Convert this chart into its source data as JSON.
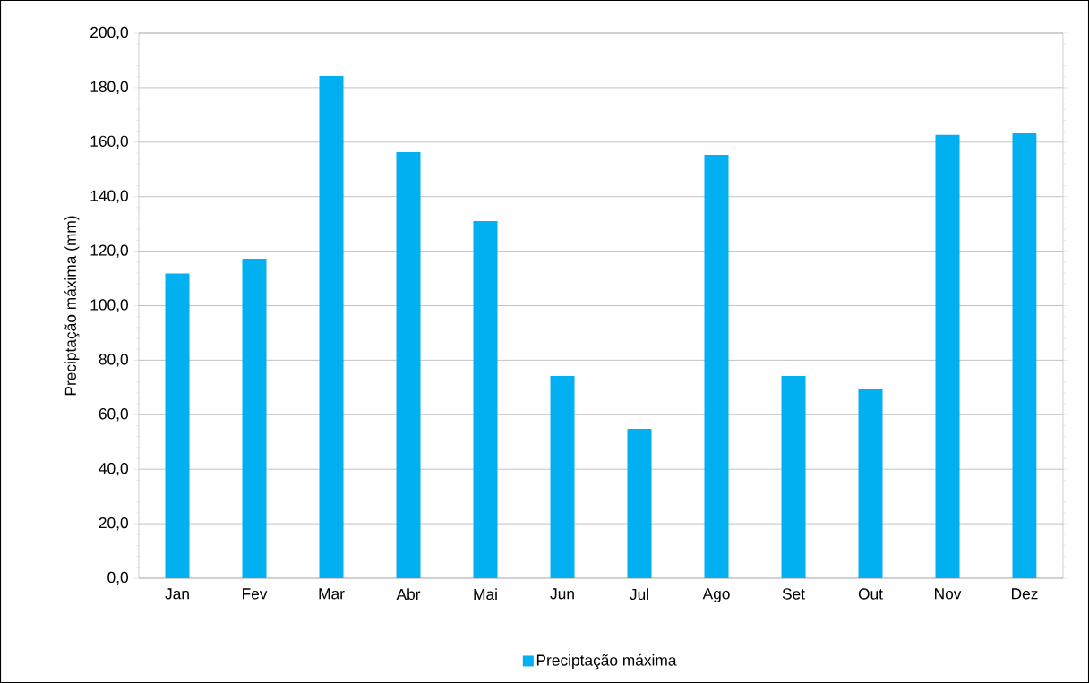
{
  "chart_data": {
    "type": "bar",
    "ylabel": "Preciptação máxima (mm)",
    "categories": [
      "Jan",
      "Fev",
      "Mar",
      "Abr",
      "Mai",
      "Jun",
      "Jul",
      "Ago",
      "Set",
      "Out",
      "Nov",
      "Dez"
    ],
    "series": [
      {
        "name": "Preciptação máxima",
        "color": "#00b0f0",
        "values": [
          111.8,
          117.2,
          184.2,
          156.3,
          131.0,
          74.2,
          54.8,
          155.3,
          74.2,
          69.3,
          162.6,
          163.2
        ]
      }
    ],
    "ylim": [
      0,
      200
    ],
    "yticks": [
      {
        "value": 0,
        "label": "0,0"
      },
      {
        "value": 20,
        "label": "20,0"
      },
      {
        "value": 40,
        "label": "40,0"
      },
      {
        "value": 60,
        "label": "60,0"
      },
      {
        "value": 80,
        "label": "80,0"
      },
      {
        "value": 100,
        "label": "100,0"
      },
      {
        "value": 120,
        "label": "120,0"
      },
      {
        "value": 140,
        "label": "140,0"
      },
      {
        "value": 160,
        "label": "160,0"
      },
      {
        "value": 180,
        "label": "180,0"
      },
      {
        "value": 200,
        "label": "200,0"
      }
    ],
    "grid": "y",
    "legend": "bottom"
  }
}
